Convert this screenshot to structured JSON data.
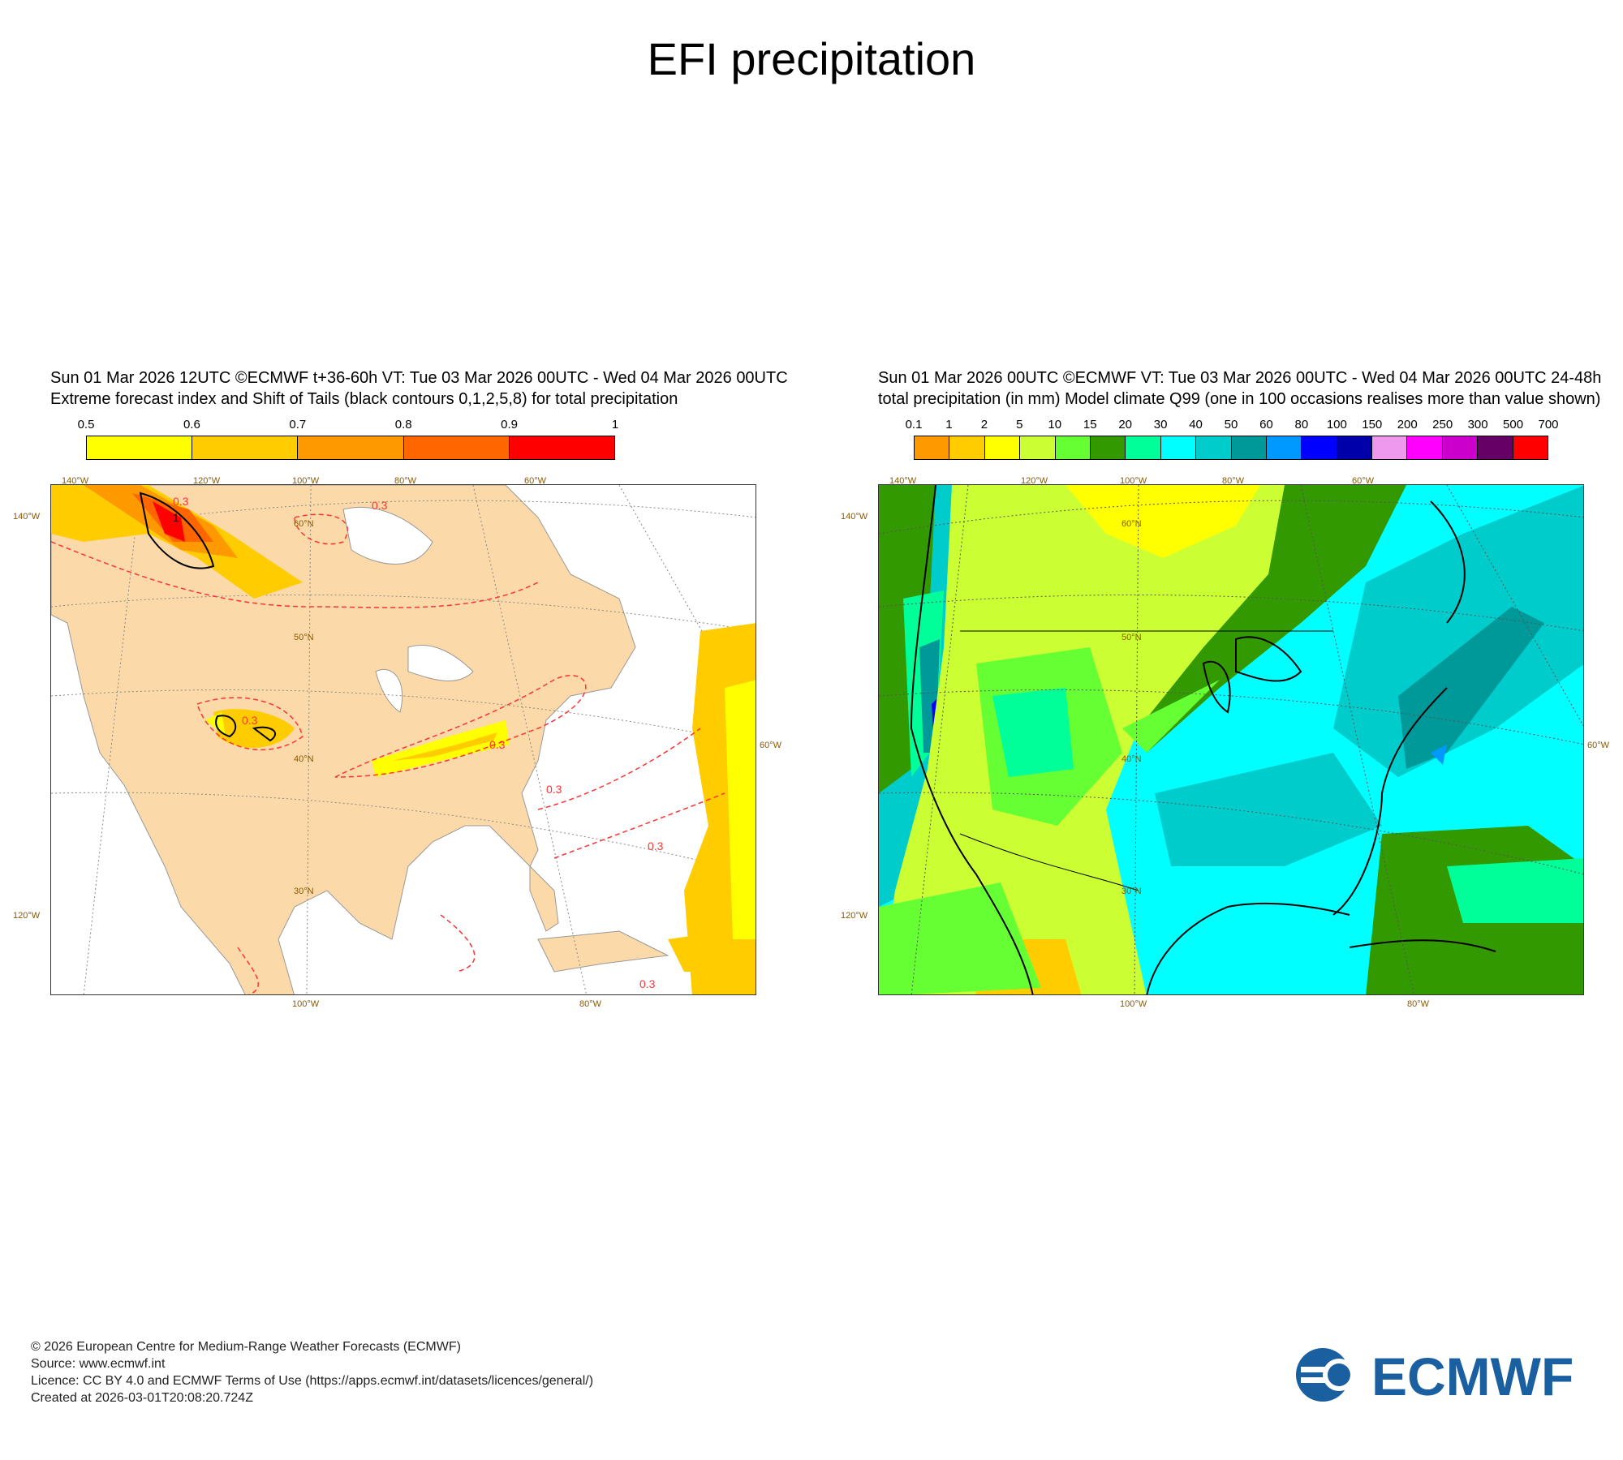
{
  "title": "EFI precipitation",
  "left_panel": {
    "header_line1": "Sun 01 Mar 2026 12UTC ©ECMWF t+36-60h  VT: Tue 03 Mar 2026 00UTC - Wed 04 Mar 2026 00UTC",
    "header_line2": "Extreme forecast index and Shift of Tails (black contours 0,1,2,5,8) for total precipitation",
    "colorbar_labels": [
      "0.5",
      "0.6",
      "0.7",
      "0.8",
      "0.9",
      "1"
    ],
    "colorbar_colors": [
      "#ffff00",
      "#ffcc00",
      "#ff9900",
      "#ff6600",
      "#ff0000"
    ],
    "contour_labels": [
      "0.3",
      "0.3",
      "0.3",
      "0.3",
      "0.3",
      "0.3",
      "0.3",
      "1"
    ],
    "top_ticks": [
      "140°W",
      "120°W",
      "100°W",
      "80°W",
      "60°W"
    ],
    "bottom_ticks": [
      "100°W",
      "80°W"
    ],
    "left_ticks": [
      "140°W",
      "120°W"
    ],
    "right_ticks": [
      "60°W"
    ],
    "lat_labels": [
      "60°N",
      "50°N",
      "40°N",
      "30°N"
    ]
  },
  "right_panel": {
    "header_line1": "Sun 01 Mar 2026 00UTC ©ECMWF VT: Tue 03 Mar 2026 00UTC - Wed 04 Mar 2026 00UTC   24-48h",
    "header_line2": "total precipitation  (in mm)  Model climate Q99 (one in 100 occasions realises more than value shown)",
    "colorbar_labels": [
      "0.1",
      "1",
      "2",
      "5",
      "10",
      "15",
      "20",
      "30",
      "40",
      "50",
      "60",
      "80",
      "100",
      "150",
      "200",
      "250",
      "300",
      "500",
      "700"
    ],
    "colorbar_colors": [
      "#ff9900",
      "#ffcc00",
      "#ffff00",
      "#ccff33",
      "#66ff33",
      "#339900",
      "#00ff99",
      "#00ffff",
      "#00cccc",
      "#009999",
      "#0099ff",
      "#0000ff",
      "#0000aa",
      "#ee99ee",
      "#ff00ff",
      "#cc00cc",
      "#660066",
      "#ff0000"
    ],
    "top_ticks": [
      "140°W",
      "120°W",
      "100°W",
      "80°W",
      "60°W"
    ],
    "bottom_ticks": [
      "100°W",
      "80°W"
    ],
    "left_ticks": [
      "140°W",
      "120°W"
    ],
    "right_ticks": [
      "60°W"
    ],
    "lat_labels": [
      "60°N",
      "50°N",
      "40°N",
      "30°N"
    ]
  },
  "footer": {
    "line1": "© 2026 European Centre for Medium-Range Weather Forecasts (ECMWF)",
    "line2": "Source: www.ecmwf.int",
    "line3": "Licence: CC BY 4.0 and ECMWF Terms of Use (https://apps.ecmwf.int/datasets/licences/general/)",
    "line4": "Created at 2026-03-01T20:08:20.724Z"
  },
  "logo_text": "ECMWF",
  "colors": {
    "land": "#fcd9a8",
    "contour": "#ff3333",
    "brand": "#1a5fa0"
  }
}
